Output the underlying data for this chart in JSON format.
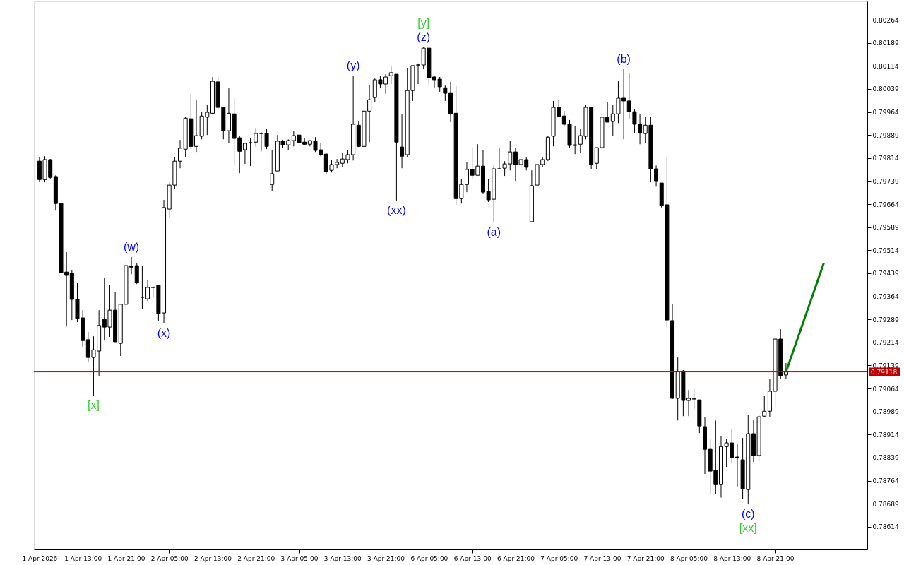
{
  "chart_data": {
    "type": "candlestick",
    "categories": [
      "1 Apr 2026",
      null,
      null,
      null,
      null,
      null,
      null,
      null,
      "1 Apr 13:00",
      null,
      null,
      null,
      null,
      null,
      null,
      null,
      "1 Apr 21:00",
      null,
      null,
      null,
      null,
      null,
      null,
      null,
      "2 Apr 05:00",
      null,
      null,
      null,
      null,
      null,
      null,
      null,
      "2 Apr 13:00",
      null,
      null,
      null,
      null,
      null,
      null,
      null,
      "2 Apr 21:00",
      null,
      null,
      null,
      null,
      null,
      null,
      null,
      "3 Apr 05:00",
      null,
      null,
      null,
      null,
      null,
      null,
      null,
      "3 Apr 13:00",
      null,
      null,
      null,
      null,
      null,
      null,
      null,
      "3 Apr 21:00",
      null,
      null,
      null,
      null,
      null,
      null,
      null,
      "6 Apr 05:00",
      null,
      null,
      null,
      null,
      null,
      null,
      null,
      "6 Apr 13:00",
      null,
      null,
      null,
      null,
      null,
      null,
      null,
      "6 Apr 21:00",
      null,
      null,
      null,
      null,
      null,
      null,
      null,
      "7 Apr 05:00",
      null,
      null,
      null,
      null,
      null,
      null,
      null,
      "7 Apr 13:00",
      null,
      null,
      null,
      null,
      null,
      null,
      null,
      "7 Apr 21:00",
      null,
      null,
      null,
      null,
      null,
      null,
      null,
      "8 Apr 05:00",
      null,
      null,
      null,
      null,
      null,
      null,
      null,
      "8 Apr 13:00",
      null,
      null,
      null,
      null,
      null,
      null,
      null,
      "8 Apr 21:00",
      null,
      null,
      null,
      null,
      null,
      null,
      null,
      null,
      null,
      null,
      null,
      null,
      null,
      null,
      null,
      null
    ],
    "ohlc": [
      [
        0.79804,
        0.79818,
        0.79738,
        0.79744
      ],
      [
        0.79744,
        0.7982,
        0.79735,
        0.79809
      ],
      [
        0.79809,
        0.79811,
        0.79747,
        0.79751
      ],
      [
        0.79754,
        0.79758,
        0.79643,
        0.79666
      ],
      [
        0.79666,
        0.79696,
        0.79432,
        0.79441
      ],
      [
        0.79443,
        0.79508,
        0.79266,
        0.79432
      ],
      [
        0.79439,
        0.7945,
        0.79287,
        0.79354
      ],
      [
        0.79354,
        0.79409,
        0.7928,
        0.79292
      ],
      [
        0.79294,
        0.79319,
        0.792,
        0.7922
      ],
      [
        0.79223,
        0.79248,
        0.79151,
        0.79165
      ],
      [
        0.79165,
        0.79234,
        0.79041,
        0.7919
      ],
      [
        0.79186,
        0.79319,
        0.79105,
        0.79269
      ],
      [
        0.79289,
        0.79425,
        0.7922,
        0.79264
      ],
      [
        0.79264,
        0.794,
        0.79232,
        0.79319
      ],
      [
        0.79319,
        0.79377,
        0.79216,
        0.79216
      ],
      [
        0.79211,
        0.79338,
        0.7917,
        0.79338
      ],
      [
        0.79338,
        0.79471,
        0.79324,
        0.79464
      ],
      [
        0.79462,
        0.79492,
        0.79436,
        0.79459
      ],
      [
        0.79464,
        0.79471,
        0.79404,
        0.79409
      ],
      [
        0.79361,
        0.79462,
        0.79322,
        0.79361
      ],
      [
        0.79356,
        0.79418,
        0.79349,
        0.79393
      ],
      [
        0.79393,
        0.79397,
        0.79361,
        0.79393
      ],
      [
        0.794,
        0.794,
        0.79285,
        0.79308
      ],
      [
        0.7931,
        0.79678,
        0.79276,
        0.79653
      ],
      [
        0.79648,
        0.79738,
        0.7962,
        0.79726
      ],
      [
        0.79726,
        0.79818,
        0.79715,
        0.79804
      ],
      [
        0.79804,
        0.79873,
        0.79781,
        0.79846
      ],
      [
        0.79843,
        0.79947,
        0.79818,
        0.79944
      ],
      [
        0.79942,
        0.80023,
        0.79843,
        0.79852
      ],
      [
        0.79852,
        0.80002,
        0.79834,
        0.79887
      ],
      [
        0.79885,
        0.79965,
        0.79875,
        0.79951
      ],
      [
        0.79947,
        0.79986,
        0.79889,
        0.79963
      ],
      [
        0.7996,
        0.80078,
        0.79958,
        0.80064
      ],
      [
        0.80062,
        0.80078,
        0.7997,
        0.79979
      ],
      [
        0.79979,
        0.79979,
        0.79875,
        0.79903
      ],
      [
        0.79903,
        0.80041,
        0.79862,
        0.7996
      ],
      [
        0.79958,
        0.80009,
        0.7979,
        0.79878
      ],
      [
        0.7988,
        0.79885,
        0.79765,
        0.79836
      ],
      [
        0.79841,
        0.79864,
        0.79795,
        0.79862
      ],
      [
        0.79864,
        0.79878,
        0.79788,
        0.79864
      ],
      [
        0.79866,
        0.79912,
        0.79852,
        0.79894
      ],
      [
        0.79894,
        0.79898,
        0.79836,
        0.79894
      ],
      [
        0.79894,
        0.79908,
        0.79843,
        0.79852
      ],
      [
        0.79728,
        0.79839,
        0.79708,
        0.79763
      ],
      [
        0.79772,
        0.79889,
        0.79772,
        0.79869
      ],
      [
        0.79869,
        0.79873,
        0.79846,
        0.79857
      ],
      [
        0.79857,
        0.79875,
        0.79839,
        0.79871
      ],
      [
        0.79871,
        0.79903,
        0.79852,
        0.79887
      ],
      [
        0.79889,
        0.79892,
        0.79852,
        0.79864
      ],
      [
        0.79866,
        0.79878,
        0.79857,
        0.79859
      ],
      [
        0.79859,
        0.79871,
        0.79852,
        0.79871
      ],
      [
        0.79869,
        0.79882,
        0.79834,
        0.79839
      ],
      [
        0.79841,
        0.79862,
        0.7982,
        0.79825
      ],
      [
        0.79827,
        0.7983,
        0.79761,
        0.7977
      ],
      [
        0.79774,
        0.79809,
        0.79767,
        0.79793
      ],
      [
        0.79793,
        0.79811,
        0.79781,
        0.798
      ],
      [
        0.79797,
        0.79832,
        0.79784,
        0.79811
      ],
      [
        0.79809,
        0.79839,
        0.79797,
        0.79825
      ],
      [
        0.79825,
        0.80082,
        0.79806,
        0.79924
      ],
      [
        0.79921,
        0.79935,
        0.7985,
        0.79852
      ],
      [
        0.79852,
        0.7997,
        0.79848,
        0.79967
      ],
      [
        0.79967,
        0.80053,
        0.79866,
        0.80004
      ],
      [
        0.80011,
        0.80073,
        0.79997,
        0.80069
      ],
      [
        0.80069,
        0.8008,
        0.80041,
        0.80055
      ],
      [
        0.80055,
        0.80087,
        0.80023,
        0.80078
      ],
      [
        0.80082,
        0.80112,
        0.80055,
        0.80092
      ],
      [
        0.80087,
        0.80087,
        0.79676,
        0.79866
      ],
      [
        0.7985,
        0.79956,
        0.79781,
        0.7982
      ],
      [
        0.79825,
        0.80108,
        0.79818,
        0.80034
      ],
      [
        0.80034,
        0.80115,
        0.8,
        0.80115
      ],
      [
        0.80117,
        0.80122,
        0.80055,
        0.80117
      ],
      [
        0.80117,
        0.80174,
        0.80103,
        0.80172
      ],
      [
        0.80172,
        0.80172,
        0.80053,
        0.80075
      ],
      [
        0.80078,
        0.80082,
        0.80043,
        0.80069
      ],
      [
        0.80071,
        0.80078,
        0.8003,
        0.80046
      ],
      [
        0.80043,
        0.8005,
        0.8,
        0.80025
      ],
      [
        0.80027,
        0.80062,
        0.79931,
        0.79958
      ],
      [
        0.7996,
        0.80048,
        0.79662,
        0.79682
      ],
      [
        0.79682,
        0.79747,
        0.79666,
        0.79728
      ],
      [
        0.79728,
        0.798,
        0.79703,
        0.79777
      ],
      [
        0.79777,
        0.79848,
        0.79747,
        0.79758
      ],
      [
        0.79758,
        0.79859,
        0.79758,
        0.79788
      ],
      [
        0.79788,
        0.79839,
        0.79698,
        0.79703
      ],
      [
        0.79705,
        0.79747,
        0.79671,
        0.79678
      ],
      [
        0.7968,
        0.7979,
        0.79604,
        0.79779
      ],
      [
        0.79779,
        0.79848,
        0.79777,
        0.79779
      ],
      [
        0.79781,
        0.79804,
        0.79756,
        0.79795
      ],
      [
        0.79795,
        0.79871,
        0.79774,
        0.79834
      ],
      [
        0.79834,
        0.79846,
        0.7974,
        0.79793
      ],
      [
        0.79793,
        0.7982,
        0.79779,
        0.79809
      ],
      [
        0.79809,
        0.79818,
        0.79774,
        0.79784
      ],
      [
        0.79607,
        0.79774,
        0.79607,
        0.79724
      ],
      [
        0.79726,
        0.79795,
        0.79726,
        0.79793
      ],
      [
        0.79793,
        0.79818,
        0.79784,
        0.79809
      ],
      [
        0.79809,
        0.79887,
        0.79804,
        0.79882
      ],
      [
        0.79885,
        0.8,
        0.79852,
        0.79979
      ],
      [
        0.79979,
        0.80004,
        0.79947,
        0.79949
      ],
      [
        0.79951,
        0.79967,
        0.79917,
        0.79924
      ],
      [
        0.79924,
        0.79938,
        0.79848,
        0.79855
      ],
      [
        0.79857,
        0.79919,
        0.79827,
        0.79855
      ],
      [
        0.79859,
        0.7991,
        0.79832,
        0.79887
      ],
      [
        0.79885,
        0.79988,
        0.79875,
        0.79979
      ],
      [
        0.79979,
        0.79979,
        0.79779,
        0.79793
      ],
      [
        0.79797,
        0.79848,
        0.79779,
        0.79848
      ],
      [
        0.79848,
        0.8,
        0.79839,
        0.79947
      ],
      [
        0.79947,
        0.79997,
        0.79931,
        0.79931
      ],
      [
        0.79933,
        0.79986,
        0.79887,
        0.79958
      ],
      [
        0.79958,
        0.80064,
        0.79928,
        0.80009
      ],
      [
        0.80009,
        0.80104,
        0.79875,
        0.8
      ],
      [
        0.8,
        0.80092,
        0.7994,
        0.79965
      ],
      [
        0.79965,
        0.79974,
        0.79894,
        0.79924
      ],
      [
        0.79924,
        0.79956,
        0.79859,
        0.79896
      ],
      [
        0.79894,
        0.79949,
        0.79862,
        0.79921
      ],
      [
        0.79921,
        0.79947,
        0.79735,
        0.79779
      ],
      [
        0.79779,
        0.7979,
        0.79721,
        0.7974
      ],
      [
        0.79733,
        0.79733,
        0.79653,
        0.79659
      ],
      [
        0.79662,
        0.79816,
        0.79264,
        0.79287
      ],
      [
        0.79285,
        0.79338,
        0.7903,
        0.79032
      ],
      [
        0.79032,
        0.79165,
        0.7896,
        0.79119
      ],
      [
        0.79121,
        0.79124,
        0.78974,
        0.79025
      ],
      [
        0.79025,
        0.79059,
        0.78974,
        0.79032
      ],
      [
        0.7903,
        0.79062,
        0.78997,
        0.7903
      ],
      [
        0.79027,
        0.79027,
        0.78919,
        0.78942
      ],
      [
        0.7894,
        0.78972,
        0.78786,
        0.78866
      ],
      [
        0.78866,
        0.78898,
        0.78719,
        0.78795
      ],
      [
        0.78797,
        0.7896,
        0.78721,
        0.78751
      ],
      [
        0.78751,
        0.7891,
        0.78709,
        0.78875
      ],
      [
        0.78875,
        0.78901,
        0.78809,
        0.78887
      ],
      [
        0.78887,
        0.78931,
        0.7882,
        0.78839
      ],
      [
        0.78841,
        0.78882,
        0.78744,
        0.78839
      ],
      [
        0.78832,
        0.78903,
        0.78705,
        0.78737
      ],
      [
        0.78735,
        0.78977,
        0.78687,
        0.78917
      ],
      [
        0.78917,
        0.78963,
        0.78825,
        0.78846
      ],
      [
        0.78846,
        0.78977,
        0.78827,
        0.78972
      ],
      [
        0.78974,
        0.79039,
        0.7897,
        0.7899
      ],
      [
        0.7899,
        0.79094,
        0.7897,
        0.79055
      ],
      [
        0.79055,
        0.79234,
        0.79004,
        0.79225
      ],
      [
        0.79225,
        0.79257,
        0.79096,
        0.79105
      ],
      [
        0.79108,
        0.79147,
        0.79096,
        0.79118
      ],
      null,
      null,
      null,
      null,
      null,
      null,
      null,
      null,
      null,
      null,
      null,
      null,
      null,
      null
    ],
    "series": [
      {
        "type": "line",
        "color": "#008000",
        "values": [
          null,
          null,
          null,
          null,
          null,
          null,
          null,
          null,
          null,
          null,
          null,
          null,
          null,
          null,
          null,
          null,
          null,
          null,
          null,
          null,
          null,
          null,
          null,
          null,
          null,
          null,
          null,
          null,
          null,
          null,
          null,
          null,
          null,
          null,
          null,
          null,
          null,
          null,
          null,
          null,
          null,
          null,
          null,
          null,
          null,
          null,
          null,
          null,
          null,
          null,
          null,
          null,
          null,
          null,
          null,
          null,
          null,
          null,
          null,
          null,
          null,
          null,
          null,
          null,
          null,
          null,
          null,
          null,
          null,
          null,
          null,
          null,
          null,
          null,
          null,
          null,
          null,
          null,
          null,
          null,
          null,
          null,
          null,
          null,
          null,
          null,
          null,
          null,
          null,
          null,
          null,
          null,
          null,
          null,
          null,
          null,
          null,
          null,
          null,
          null,
          null,
          null,
          null,
          null,
          null,
          null,
          null,
          null,
          null,
          null,
          null,
          null,
          null,
          null,
          null,
          null,
          null,
          null,
          null,
          null,
          null,
          null,
          null,
          null,
          null,
          null,
          null,
          null,
          null,
          null,
          null,
          null,
          null,
          null,
          null,
          null,
          null,
          null,
          0.79118,
          null,
          null,
          null,
          null,
          null,
          null,
          0.79473,
          null,
          null,
          null,
          null,
          null,
          null,
          null
        ]
      }
    ],
    "ylim": [
      0.7854,
      0.80324
    ],
    "yticks": [
      0.80264,
      0.80189,
      0.80114,
      0.80039,
      0.79964,
      0.79889,
      0.79814,
      0.79739,
      0.79664,
      0.79589,
      0.79514,
      0.79439,
      0.79364,
      0.79289,
      0.79214,
      0.79139,
      0.79064,
      0.78989,
      0.78914,
      0.78839,
      0.78764,
      0.78689,
      0.78614
    ],
    "ref_lines": [
      {
        "axis": "y",
        "value": 0.79118,
        "label": "0.79118",
        "color": "#c00000"
      }
    ],
    "annotations": [
      {
        "text": "[x]",
        "y": 0.79041
      },
      {
        "text": "(w)",
        "y": 0.79492
      },
      {
        "text": "(x)",
        "y": 0.79276
      },
      {
        "text": "(y)",
        "y": 0.80082
      },
      {
        "text": "(xx)",
        "y": 0.79676
      },
      {
        "text": "(z)",
        "y": 0.80174
      },
      {
        "text": "[y]",
        "y": 0.80174
      },
      {
        "text": "(a)",
        "y": 0.79604
      },
      {
        "text": "(b)",
        "y": 0.80104
      },
      {
        "text": "(c)",
        "y": 0.78687
      },
      {
        "text": "[xx]",
        "y": 0.78687
      }
    ],
    "tick_labels": true
  }
}
